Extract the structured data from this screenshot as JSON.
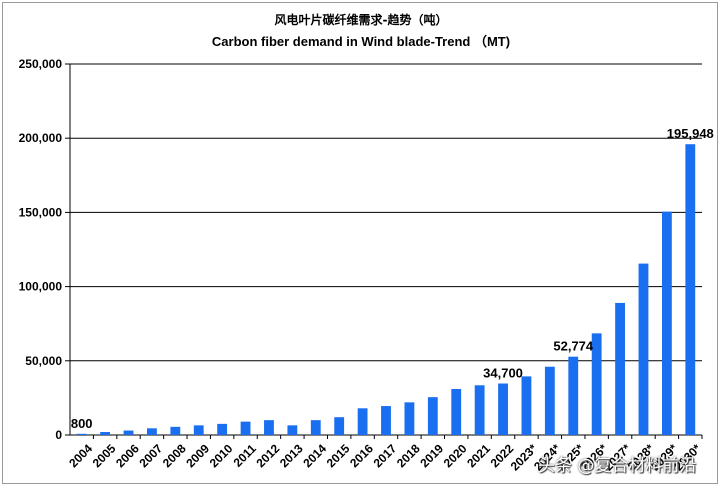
{
  "chart_data": {
    "type": "bar",
    "title": "风电叶片碳纤维需求-趋势（吨）",
    "subtitle": "Carbon fiber demand in Wind blade-Trend  （MT)",
    "xlabel": "",
    "ylabel": "",
    "ylim": [
      0,
      250000
    ],
    "yticks": [
      0,
      50000,
      100000,
      150000,
      200000,
      250000
    ],
    "ytick_labels": [
      "0",
      "50,000",
      "100,000",
      "150,000",
      "200,000",
      "250,000"
    ],
    "grid": "horizontal",
    "bar_color": "#1a6ef0",
    "categories": [
      "2004",
      "2005",
      "2006",
      "2007",
      "2008",
      "2009",
      "2010",
      "2011",
      "2012",
      "2013",
      "2014",
      "2015",
      "2016",
      "2017",
      "2018",
      "2019",
      "2020",
      "2021",
      "2022",
      "2023*",
      "2024*",
      "2025*",
      "2026*",
      "2027*",
      "2028*",
      "2029*",
      "2030*"
    ],
    "values": [
      800,
      2000,
      3000,
      4500,
      5500,
      6500,
      7500,
      9000,
      10000,
      6500,
      10000,
      12000,
      18000,
      19500,
      22000,
      25500,
      31000,
      33500,
      34700,
      39500,
      46000,
      52774,
      68500,
      89000,
      115500,
      150500,
      195948
    ],
    "data_labels": [
      {
        "index": 0,
        "text": "800"
      },
      {
        "index": 18,
        "text": "34,700"
      },
      {
        "index": 21,
        "text": "52,774"
      },
      {
        "index": 26,
        "text": "195,948"
      }
    ]
  },
  "watermark": "头条 @复合材料前沿"
}
